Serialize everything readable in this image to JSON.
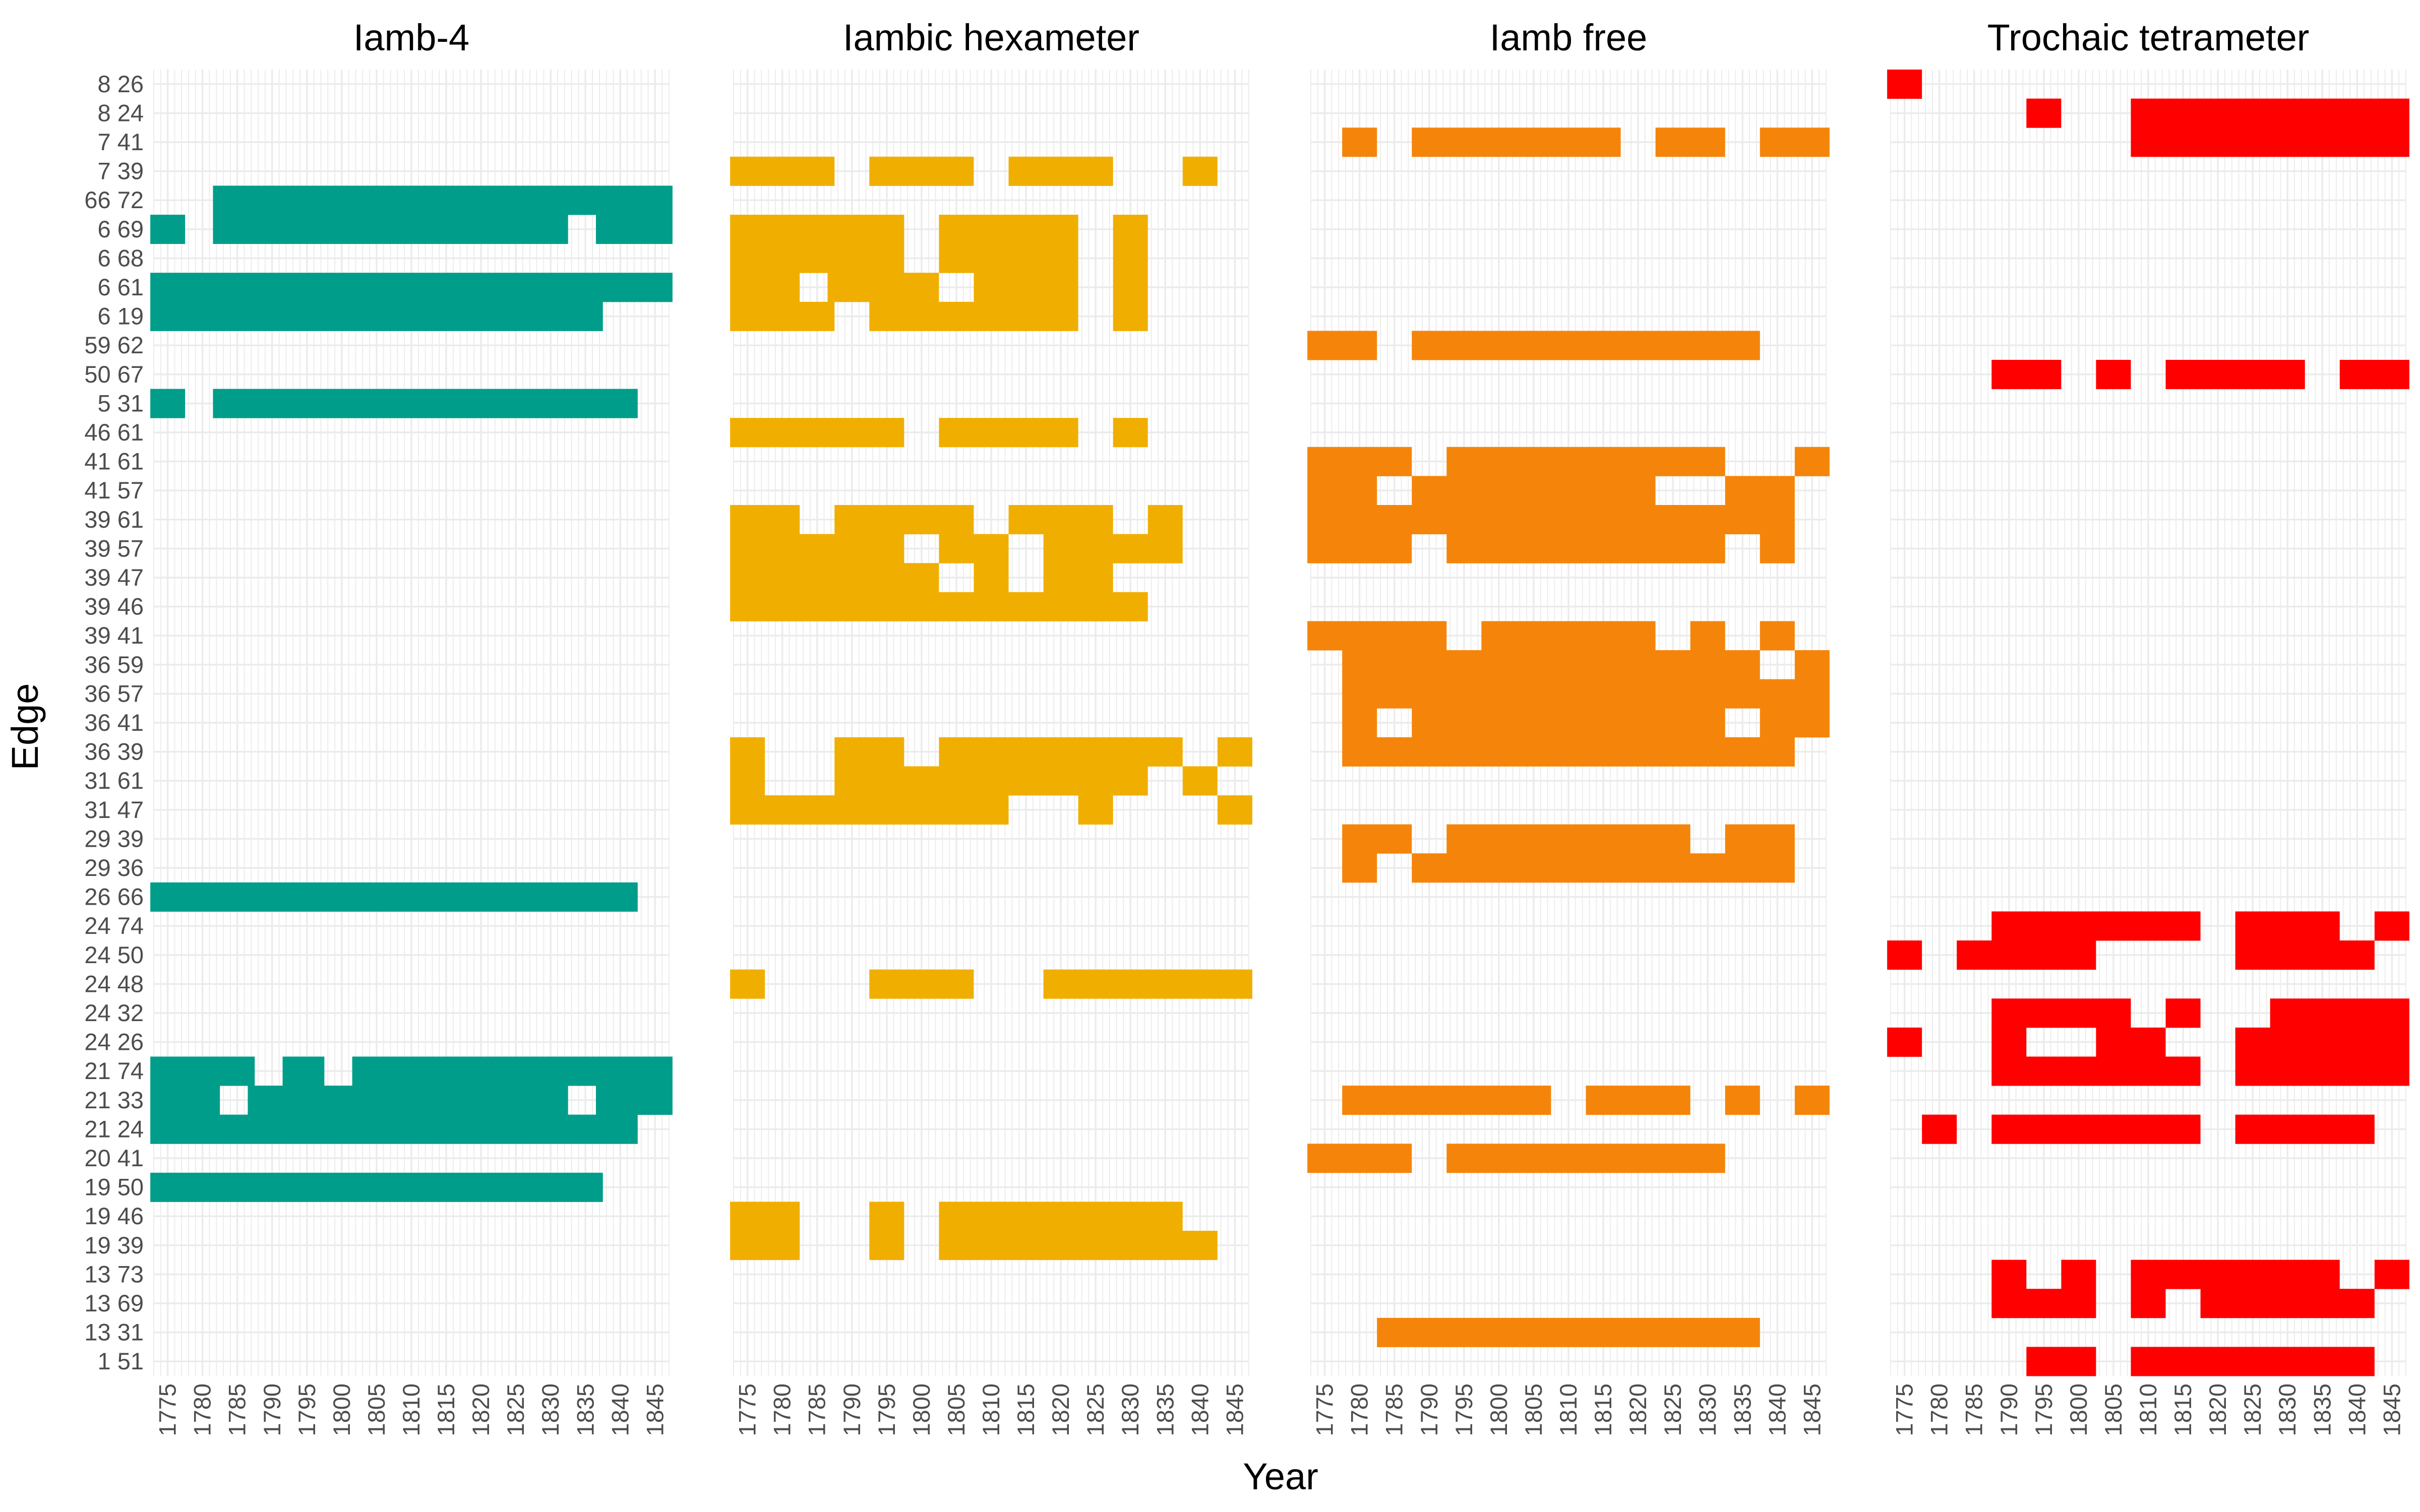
{
  "chart_data": {
    "type": "heatmap",
    "xlabel": "Year",
    "ylabel": "Edge",
    "x": [
      "1775",
      "1780",
      "1785",
      "1790",
      "1795",
      "1800",
      "1805",
      "1810",
      "1815",
      "1820",
      "1825",
      "1830",
      "1835",
      "1840",
      "1845"
    ],
    "edges": [
      "8 26",
      "8 24",
      "7 41",
      "7 39",
      "66 72",
      "6 69",
      "6 68",
      "6 61",
      "6 19",
      "59 62",
      "50 67",
      "5 31",
      "46 61",
      "41 61",
      "41 57",
      "39 61",
      "39 57",
      "39 47",
      "39 46",
      "39 41",
      "36 59",
      "36 57",
      "36 41",
      "36 39",
      "31 61",
      "31 47",
      "29 39",
      "29 36",
      "26 66",
      "24 74",
      "24 50",
      "24 48",
      "24 32",
      "24 26",
      "21 74",
      "21 33",
      "21 24",
      "20 41",
      "19 50",
      "19 46",
      "19 39",
      "13 73",
      "13 69",
      "13 31",
      "1 51"
    ],
    "year_range": [
      1773,
      1847
    ],
    "panels": [
      {
        "title": "Iamb-4",
        "color": "#009E8A",
        "cells": {
          "66 72": [
            [
              1782,
              1847
            ]
          ],
          "6 69": [
            [
              1773,
              1777
            ],
            [
              1782,
              1832
            ],
            [
              1837,
              1847
            ]
          ],
          "6 61": [
            [
              1773,
              1847
            ]
          ],
          "6 19": [
            [
              1773,
              1837
            ]
          ],
          "5 31": [
            [
              1773,
              1777
            ],
            [
              1782,
              1842
            ]
          ],
          "26 66": [
            [
              1773,
              1842
            ]
          ],
          "21 74": [
            [
              1773,
              1787
            ],
            [
              1792,
              1797
            ],
            [
              1802,
              1847
            ]
          ],
          "21 33": [
            [
              1773,
              1782
            ],
            [
              1787,
              1832
            ],
            [
              1837,
              1847
            ]
          ],
          "21 24": [
            [
              1773,
              1842
            ]
          ],
          "19 50": [
            [
              1773,
              1837
            ]
          ]
        }
      },
      {
        "title": "Iambic hexameter",
        "color": "#F0AF00",
        "cells": {
          "7 39": [
            [
              1773,
              1787
            ],
            [
              1793,
              1807
            ],
            [
              1813,
              1827
            ],
            [
              1838,
              1842
            ]
          ],
          "6 69": [
            [
              1773,
              1797
            ],
            [
              1803,
              1822
            ],
            [
              1828,
              1832
            ]
          ],
          "6 68": [
            [
              1773,
              1797
            ],
            [
              1803,
              1822
            ],
            [
              1828,
              1832
            ]
          ],
          "6 61": [
            [
              1773,
              1782
            ],
            [
              1787,
              1802
            ],
            [
              1808,
              1822
            ],
            [
              1828,
              1832
            ]
          ],
          "6 19": [
            [
              1773,
              1787
            ],
            [
              1793,
              1822
            ],
            [
              1828,
              1832
            ]
          ],
          "46 61": [
            [
              1773,
              1797
            ],
            [
              1803,
              1822
            ],
            [
              1828,
              1832
            ]
          ],
          "39 61": [
            [
              1773,
              1782
            ],
            [
              1788,
              1807
            ],
            [
              1813,
              1827
            ],
            [
              1833,
              1837
            ]
          ],
          "39 57": [
            [
              1773,
              1797
            ],
            [
              1803,
              1812
            ],
            [
              1818,
              1837
            ]
          ],
          "39 47": [
            [
              1773,
              1802
            ],
            [
              1808,
              1812
            ],
            [
              1818,
              1827
            ]
          ],
          "39 46": [
            [
              1773,
              1832
            ]
          ],
          "36 39": [
            [
              1773,
              1777
            ],
            [
              1788,
              1797
            ],
            [
              1803,
              1837
            ],
            [
              1843,
              1847
            ]
          ],
          "31 61": [
            [
              1773,
              1777
            ],
            [
              1788,
              1832
            ],
            [
              1838,
              1842
            ]
          ],
          "31 47": [
            [
              1773,
              1812
            ],
            [
              1823,
              1827
            ],
            [
              1843,
              1847
            ]
          ],
          "24 48": [
            [
              1773,
              1777
            ],
            [
              1793,
              1807
            ],
            [
              1818,
              1847
            ]
          ],
          "19 46": [
            [
              1773,
              1782
            ],
            [
              1793,
              1797
            ],
            [
              1803,
              1837
            ]
          ],
          "19 39": [
            [
              1773,
              1782
            ],
            [
              1793,
              1797
            ],
            [
              1803,
              1842
            ]
          ]
        }
      },
      {
        "title": "Iamb free",
        "color": "#F5850A",
        "cells": {
          "7 41": [
            [
              1778,
              1782
            ],
            [
              1788,
              1817
            ],
            [
              1823,
              1832
            ],
            [
              1838,
              1847
            ]
          ],
          "59 62": [
            [
              1773,
              1782
            ],
            [
              1788,
              1837
            ]
          ],
          "41 61": [
            [
              1773,
              1787
            ],
            [
              1793,
              1832
            ],
            [
              1843,
              1847
            ]
          ],
          "41 57": [
            [
              1773,
              1782
            ],
            [
              1788,
              1822
            ],
            [
              1833,
              1842
            ]
          ],
          "39 61": [
            [
              1773,
              1842
            ]
          ],
          "39 57": [
            [
              1773,
              1787
            ],
            [
              1793,
              1832
            ],
            [
              1838,
              1842
            ]
          ],
          "39 41": [
            [
              1773,
              1792
            ],
            [
              1798,
              1822
            ],
            [
              1828,
              1832
            ],
            [
              1838,
              1842
            ]
          ],
          "36 59": [
            [
              1778,
              1837
            ],
            [
              1843,
              1847
            ]
          ],
          "36 57": [
            [
              1778,
              1847
            ]
          ],
          "36 41": [
            [
              1778,
              1782
            ],
            [
              1788,
              1832
            ],
            [
              1838,
              1847
            ]
          ],
          "36 39": [
            [
              1778,
              1842
            ]
          ],
          "29 39": [
            [
              1778,
              1787
            ],
            [
              1793,
              1827
            ],
            [
              1833,
              1842
            ]
          ],
          "29 36": [
            [
              1778,
              1782
            ],
            [
              1788,
              1842
            ]
          ],
          "21 33": [
            [
              1778,
              1807
            ],
            [
              1813,
              1827
            ],
            [
              1833,
              1837
            ],
            [
              1843,
              1847
            ]
          ],
          "20 41": [
            [
              1773,
              1787
            ],
            [
              1793,
              1832
            ]
          ],
          "13 31": [
            [
              1783,
              1837
            ]
          ]
        }
      },
      {
        "title": "Trochaic tetrameter",
        "color": "#FF0000",
        "cells": {
          "8 26": [
            [
              1773,
              1777
            ]
          ],
          "8 24": [
            [
              1793,
              1797
            ],
            [
              1808,
              1847
            ]
          ],
          "7 41": [
            [
              1808,
              1847
            ]
          ],
          "50 67": [
            [
              1788,
              1797
            ],
            [
              1803,
              1807
            ],
            [
              1813,
              1832
            ],
            [
              1838,
              1847
            ]
          ],
          "24 74": [
            [
              1788,
              1817
            ],
            [
              1823,
              1837
            ],
            [
              1843,
              1847
            ]
          ],
          "24 50": [
            [
              1773,
              1777
            ],
            [
              1783,
              1802
            ],
            [
              1823,
              1842
            ]
          ],
          "24 32": [
            [
              1788,
              1807
            ],
            [
              1813,
              1817
            ],
            [
              1828,
              1847
            ]
          ],
          "24 26": [
            [
              1773,
              1777
            ],
            [
              1788,
              1792
            ],
            [
              1803,
              1812
            ],
            [
              1823,
              1847
            ]
          ],
          "21 74": [
            [
              1788,
              1817
            ],
            [
              1823,
              1847
            ]
          ],
          "21 24": [
            [
              1778,
              1782
            ],
            [
              1788,
              1817
            ],
            [
              1823,
              1842
            ]
          ],
          "13 73": [
            [
              1788,
              1792
            ],
            [
              1798,
              1802
            ],
            [
              1808,
              1837
            ],
            [
              1843,
              1847
            ]
          ],
          "13 69": [
            [
              1788,
              1802
            ],
            [
              1808,
              1812
            ],
            [
              1818,
              1842
            ]
          ],
          "1 51": [
            [
              1793,
              1802
            ],
            [
              1808,
              1842
            ]
          ]
        }
      }
    ]
  }
}
